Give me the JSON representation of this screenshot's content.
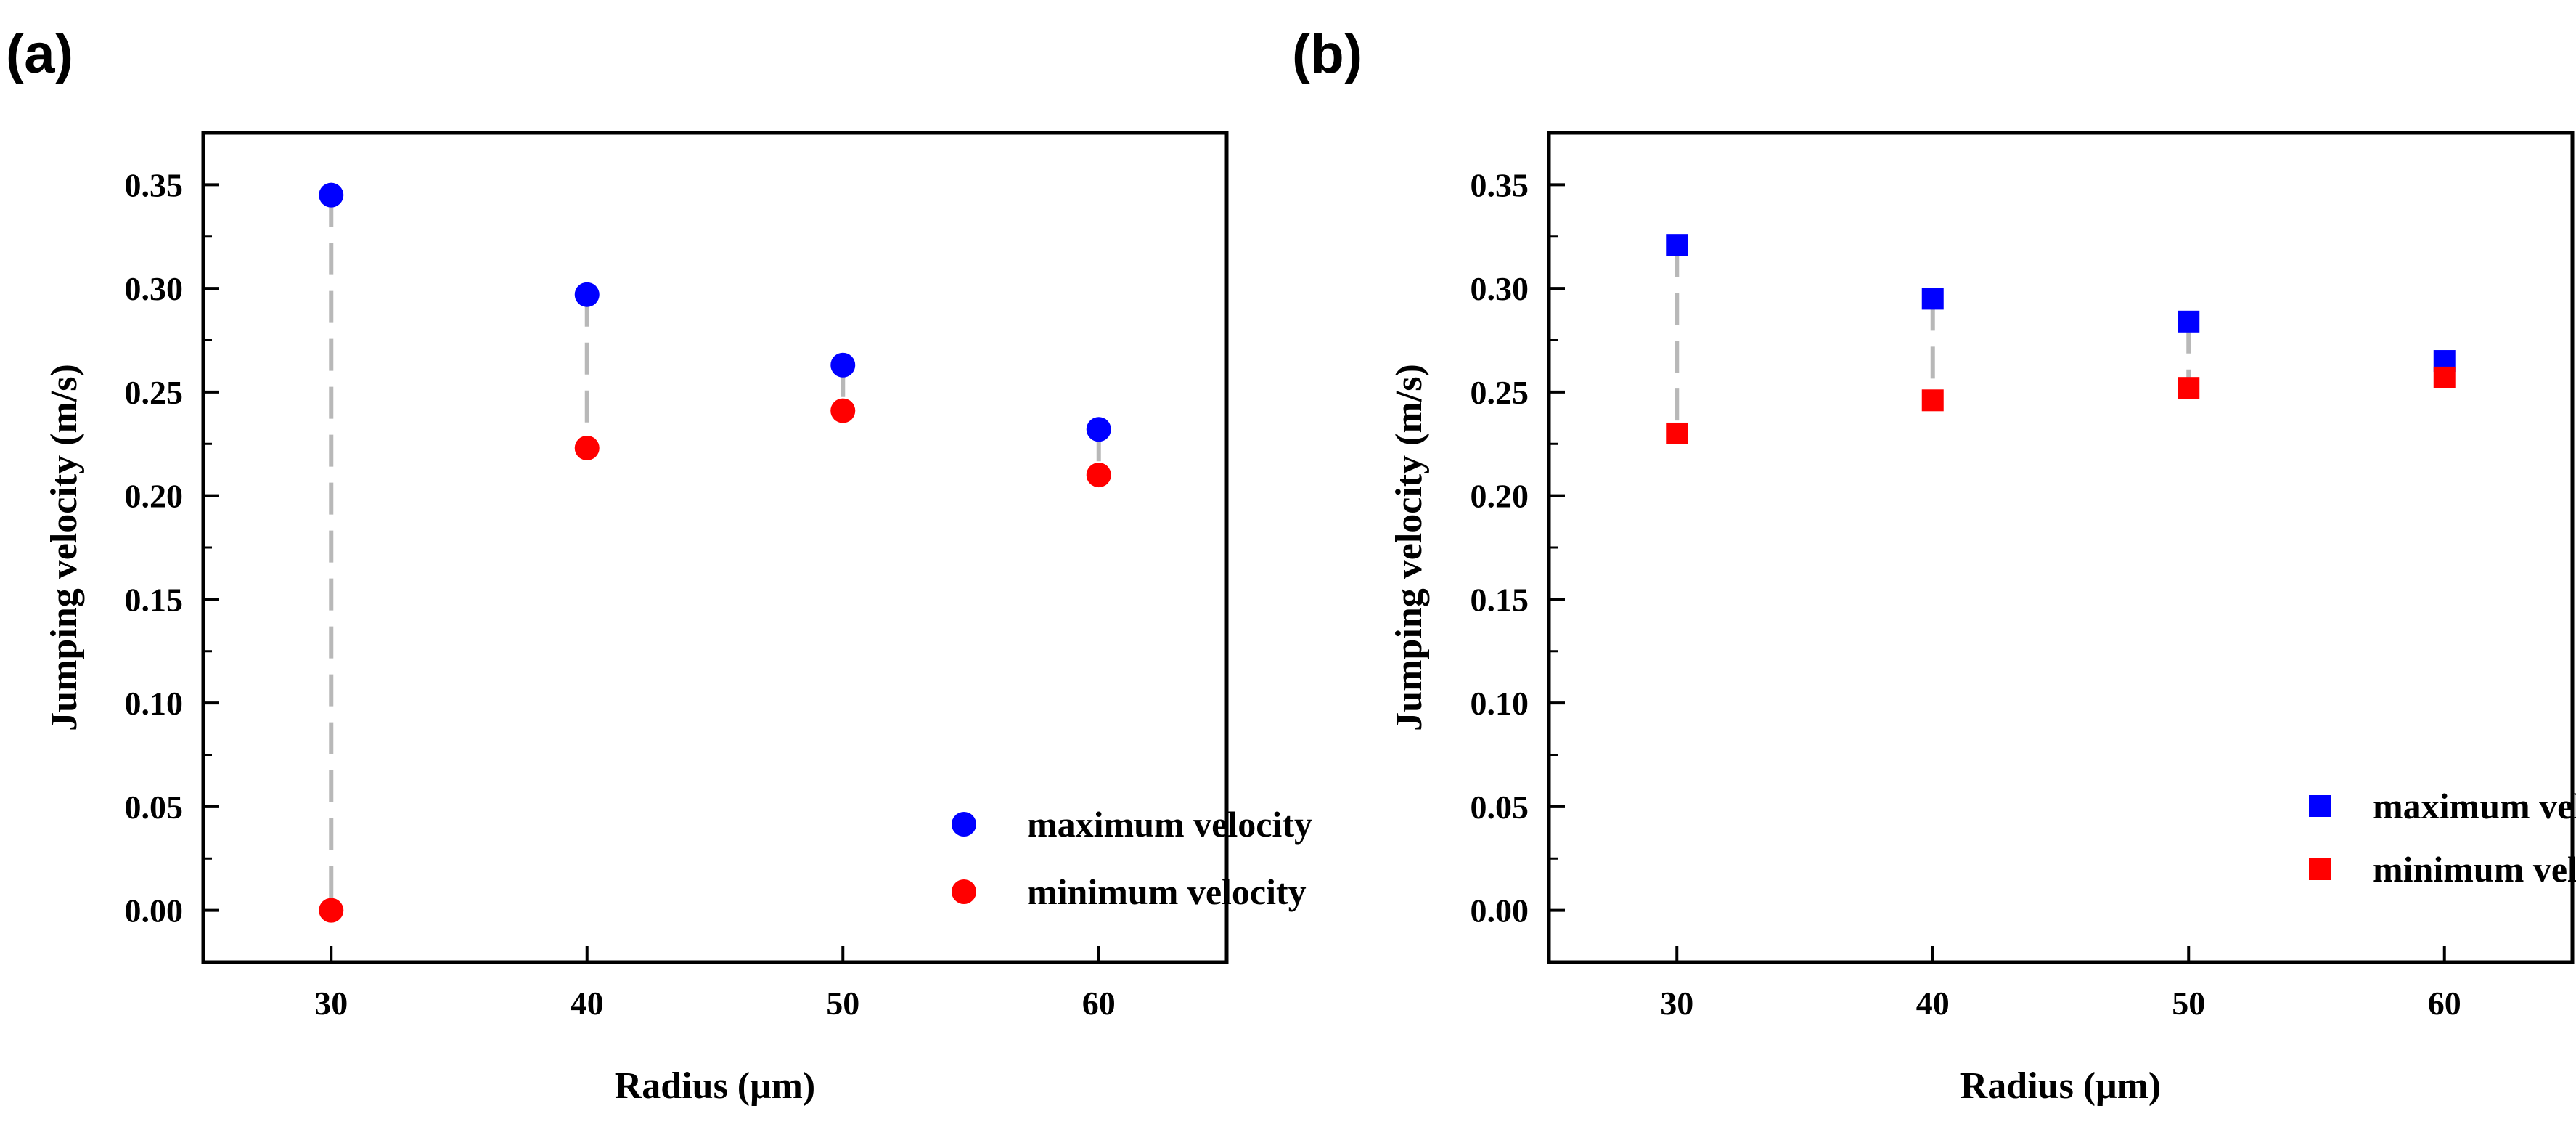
{
  "chart_data": [
    {
      "type": "scatter",
      "panel_label": "(a)",
      "marker": "circle",
      "xlabel": "Radius (μm)",
      "ylabel": "Jumping velocity (m/s)",
      "xlim": [
        25,
        65
      ],
      "ylim": [
        -0.025,
        0.375
      ],
      "x_ticks": [
        "30",
        "40",
        "50",
        "60"
      ],
      "x_tick_values": [
        30,
        40,
        50,
        60
      ],
      "y_ticks": [
        "0.00",
        "0.05",
        "0.10",
        "0.15",
        "0.20",
        "0.25",
        "0.30",
        "0.35"
      ],
      "y_tick_values": [
        0.0,
        0.05,
        0.1,
        0.15,
        0.2,
        0.25,
        0.3,
        0.35
      ],
      "legend_position": "bottom-right",
      "connectors": "dashed gray lines between max and min at each radius",
      "series": [
        {
          "name": "maximum velocity",
          "color": "#0000ff",
          "x": [
            30,
            40,
            50,
            60
          ],
          "values": [
            0.345,
            0.297,
            0.263,
            0.232
          ]
        },
        {
          "name": "minimum velocity",
          "color": "#ff0000",
          "x": [
            30,
            40,
            50,
            60
          ],
          "values": [
            0.0,
            0.223,
            0.241,
            0.21
          ]
        }
      ]
    },
    {
      "type": "scatter",
      "panel_label": "(b)",
      "marker": "square",
      "xlabel": "Radius (μm)",
      "ylabel": "Jumping velocity (m/s)",
      "xlim": [
        25,
        65
      ],
      "ylim": [
        -0.025,
        0.375
      ],
      "x_ticks": [
        "30",
        "40",
        "50",
        "60"
      ],
      "x_tick_values": [
        30,
        40,
        50,
        60
      ],
      "y_ticks": [
        "0.00",
        "0.05",
        "0.10",
        "0.15",
        "0.20",
        "0.25",
        "0.30",
        "0.35"
      ],
      "y_tick_values": [
        0.0,
        0.05,
        0.1,
        0.15,
        0.2,
        0.25,
        0.3,
        0.35
      ],
      "legend_position": "bottom-right",
      "connectors": "dashed gray lines between max and min at each radius",
      "series": [
        {
          "name": "maximum velocity",
          "color": "#0000ff",
          "x": [
            30,
            40,
            50,
            60
          ],
          "values": [
            0.321,
            0.295,
            0.284,
            0.265
          ]
        },
        {
          "name": "minimum velocity",
          "color": "#ff0000",
          "x": [
            30,
            40,
            50,
            60
          ],
          "values": [
            0.23,
            0.246,
            0.252,
            0.257
          ]
        }
      ]
    }
  ]
}
